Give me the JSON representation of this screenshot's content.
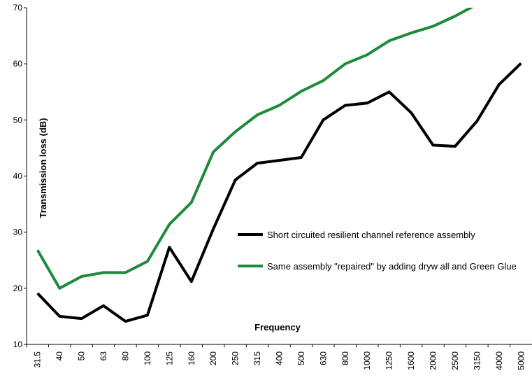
{
  "chart_data": {
    "type": "line",
    "y_label": "Transmission loss (dB)",
    "x_label": "Frequency",
    "categories": [
      "31.5",
      "40",
      "50",
      "63",
      "80",
      "100",
      "125",
      "160",
      "200",
      "250",
      "315",
      "400",
      "500",
      "630",
      "800",
      "1000",
      "1250",
      "1600",
      "2000",
      "2500",
      "3150",
      "4000",
      "5000"
    ],
    "series": [
      {
        "name": "Short circuited resilient channel reference assembly",
        "color": "#000000",
        "values": [
          19.1,
          15.0,
          14.6,
          16.9,
          14.1,
          15.2,
          27.3,
          21.2,
          30.6,
          39.3,
          42.3,
          42.8,
          43.3,
          50.0,
          52.6,
          53.0,
          55.0,
          51.3,
          45.5,
          45.3,
          49.8,
          56.3,
          60.1
        ]
      },
      {
        "name": "Same assembly \"repaired\" by adding dryw all and Green Glue",
        "color": "#1e8a3c",
        "values": [
          26.8,
          20.0,
          22.1,
          22.8,
          22.8,
          24.8,
          31.4,
          35.3,
          44.3,
          47.9,
          50.9,
          52.6,
          55.1,
          57.0,
          60.0,
          61.6,
          64.1,
          65.5,
          66.7,
          68.5,
          70.6,
          null,
          null
        ]
      }
    ],
    "ylim": [
      10,
      70
    ],
    "yticks": [
      10,
      20,
      30,
      40,
      50,
      60,
      70
    ]
  }
}
